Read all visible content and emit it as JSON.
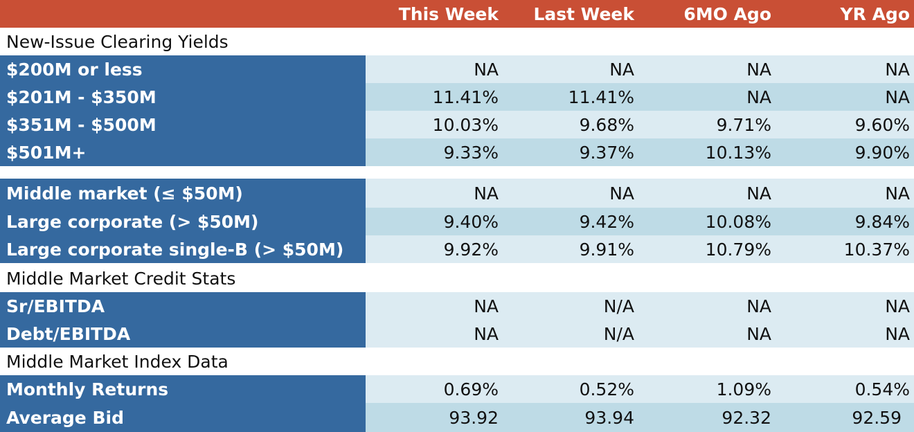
{
  "header": {
    "columns": [
      "This Week",
      "Last Week",
      "6MO Ago",
      "YR Ago"
    ]
  },
  "sections": [
    {
      "title": "New-Issue Clearing Yields",
      "rows": [
        {
          "label": "$200M or less",
          "values": [
            "NA",
            "NA",
            "NA",
            "NA"
          ]
        },
        {
          "label": "$201M - $350M",
          "values": [
            "11.41%",
            "11.41%",
            "NA",
            "NA"
          ]
        },
        {
          "label": "$351M - $500M",
          "values": [
            "10.03%",
            "9.68%",
            "9.71%",
            "9.60%"
          ]
        },
        {
          "label": "$501M+",
          "values": [
            "9.33%",
            "9.37%",
            "10.13%",
            "9.90%"
          ]
        }
      ]
    },
    {
      "title": "",
      "rows": [
        {
          "label": "Middle market (≤ $50M)",
          "values": [
            "NA",
            "NA",
            "NA",
            "NA"
          ]
        },
        {
          "label": "Large corporate (> $50M)",
          "values": [
            "9.40%",
            "9.42%",
            "10.08%",
            "9.84%"
          ]
        },
        {
          "label": "Large corporate single-B (> $50M)",
          "values": [
            "9.92%",
            "9.91%",
            "10.79%",
            "10.37%"
          ]
        }
      ]
    },
    {
      "title": "Middle Market Credit Stats",
      "rows": [
        {
          "label": "Sr/EBITDA",
          "values": [
            "NA",
            "N/A",
            "NA",
            "NA"
          ]
        },
        {
          "label": "Debt/EBITDA",
          "values": [
            "NA",
            "N/A",
            "NA",
            "NA"
          ]
        }
      ]
    },
    {
      "title": "Middle Market Index Data",
      "rows": [
        {
          "label": "Monthly Returns",
          "values": [
            "0.69%",
            "0.52%",
            "1.09%",
            "0.54%"
          ]
        },
        {
          "label": "Average Bid",
          "values": [
            "93.92",
            "93.94",
            "92.32",
            "92.59"
          ]
        }
      ]
    }
  ],
  "colors": {
    "header_bg": "#c94f35",
    "label_bg": "#35699f",
    "value_light": "#dcebf2",
    "value_dark": "#bedbe6"
  }
}
